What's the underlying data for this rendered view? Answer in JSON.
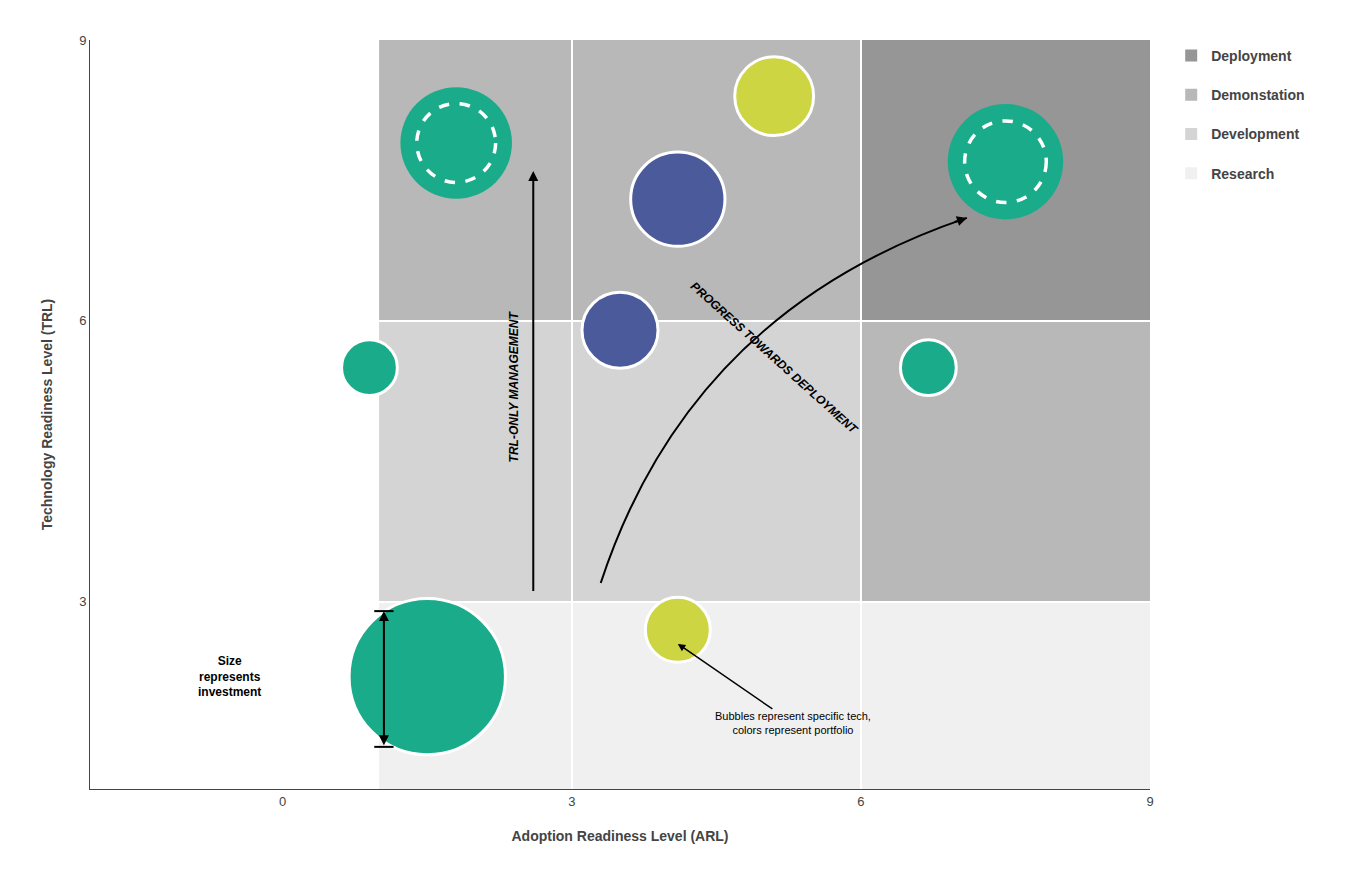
{
  "chart_data": {
    "type": "bubble",
    "xlabel": "Adoption Readiness Level (ARL)",
    "ylabel": "Technology Readiness Level (TRL)",
    "xlim": [
      -2,
      9
    ],
    "ylim": [
      1,
      9
    ],
    "xticks": [
      0,
      3,
      6,
      9
    ],
    "yticks": [
      3,
      6,
      9
    ],
    "grid": true,
    "legend": "right",
    "zones": [
      {
        "name": "Deployment",
        "color": "#969696",
        "areas": [
          {
            "x": [
              6,
              9
            ],
            "y": [
              6,
              9
            ]
          }
        ]
      },
      {
        "name": "Demonstation",
        "color": "#b8b8b8",
        "areas": [
          {
            "x": [
              1,
              3
            ],
            "y": [
              6,
              9
            ]
          },
          {
            "x": [
              3,
              6
            ],
            "y": [
              6,
              9
            ]
          },
          {
            "x": [
              6,
              9
            ],
            "y": [
              3,
              6
            ]
          }
        ]
      },
      {
        "name": "Development",
        "color": "#d4d4d4",
        "areas": [
          {
            "x": [
              1,
              3
            ],
            "y": [
              3,
              6
            ]
          },
          {
            "x": [
              3,
              6
            ],
            "y": [
              3,
              6
            ]
          }
        ]
      },
      {
        "name": "Research",
        "color": "#f0f0f0",
        "areas": [
          {
            "x": [
              1,
              3
            ],
            "y": [
              1,
              3
            ]
          },
          {
            "x": [
              3,
              6
            ],
            "y": [
              1,
              3
            ]
          },
          {
            "x": [
              6,
              9
            ],
            "y": [
              1,
              3
            ]
          }
        ]
      }
    ],
    "bubbles": [
      {
        "x": 1.5,
        "y": 2.2,
        "size": 5500,
        "color": "#1aab8a",
        "line_style": "solid"
      },
      {
        "x": 0.9,
        "y": 5.5,
        "size": 700,
        "color": "#1aab8a",
        "line_style": "solid"
      },
      {
        "x": 1.8,
        "y": 7.9,
        "size": 2800,
        "color": "#1aab8a",
        "line_style": "dashed"
      },
      {
        "x": 3.5,
        "y": 5.9,
        "size": 1300,
        "color": "#4a5a9a",
        "line_style": "solid"
      },
      {
        "x": 4.1,
        "y": 7.3,
        "size": 2000,
        "color": "#4a5a9a",
        "line_style": "solid"
      },
      {
        "x": 5.1,
        "y": 8.4,
        "size": 1400,
        "color": "#cdd542",
        "line_style": "solid"
      },
      {
        "x": 4.1,
        "y": 2.7,
        "size": 950,
        "color": "#cdd542",
        "line_style": "solid"
      },
      {
        "x": 6.7,
        "y": 5.5,
        "size": 700,
        "color": "#1aab8a",
        "line_style": "solid"
      },
      {
        "x": 7.5,
        "y": 7.7,
        "size": 3000,
        "color": "#1aab8a",
        "line_style": "dashed"
      }
    ],
    "annotations": [
      "TRL-ONLY MANAGEMENT",
      "PROGRESS TOWARDS DEPLOYMENT",
      "Size\nrepresents\ninvestment",
      "Bubbles represent specific tech,\ncolors represent portfolio"
    ]
  }
}
